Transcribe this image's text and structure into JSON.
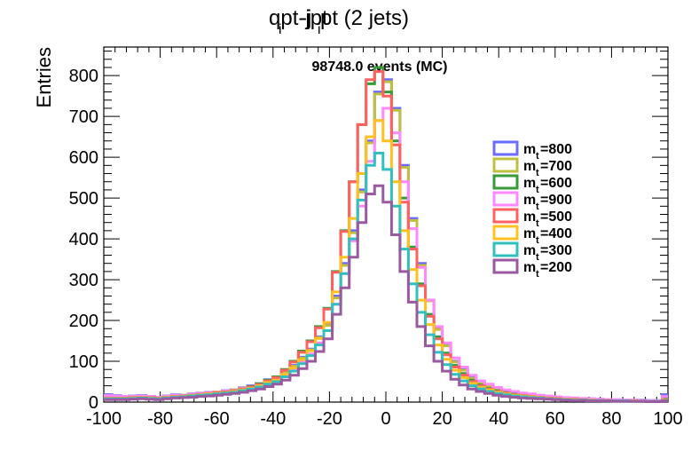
{
  "chart_data": {
    "type": "line",
    "title_main": "qpt-jpt",
    "title_sub": "i",
    "title_main_2": "pt (2 jets)",
    "title_prefix_j": "-j",
    "annotation": "98748.0 events (MC)",
    "ylabel": "Entries",
    "xlabel": "",
    "xlim": [
      -100,
      100
    ],
    "ylim": [
      0,
      870
    ],
    "x_ticks": [
      -100,
      -80,
      -60,
      -40,
      -20,
      0,
      20,
      40,
      60,
      80,
      100
    ],
    "x_tick_labels": [
      "-100",
      "-80",
      "-60",
      "-40",
      "-20",
      "0",
      "20",
      "40",
      "60",
      "80",
      "100"
    ],
    "y_ticks": [
      0,
      100,
      200,
      300,
      400,
      500,
      600,
      700,
      800
    ],
    "y_tick_labels": [
      "0",
      "100",
      "200",
      "300",
      "400",
      "500",
      "600",
      "700",
      "800"
    ],
    "grid": false,
    "legend_position": "right",
    "x": [
      -98.5,
      -95.5,
      -92.5,
      -89.5,
      -86.5,
      -83.5,
      -80.5,
      -77.5,
      -74.5,
      -71.5,
      -68.5,
      -65.5,
      -62.5,
      -59.5,
      -56.5,
      -53.5,
      -50.5,
      -47.5,
      -44.5,
      -41.5,
      -38.5,
      -35.5,
      -32.5,
      -29.5,
      -26.5,
      -23.5,
      -20.5,
      -17.5,
      -14.5,
      -11.5,
      -8.5,
      -5.5,
      -2.5,
      0.5,
      3.5,
      6.5,
      9.5,
      12.5,
      15.5,
      18.5,
      21.5,
      24.5,
      27.5,
      30.5,
      33.5,
      36.5,
      39.5,
      42.5,
      45.5,
      48.5,
      51.5,
      54.5,
      57.5,
      60.5,
      63.5,
      66.5,
      69.5,
      72.5,
      75.5,
      78.5,
      81.5,
      84.5,
      87.5,
      90.5,
      93.5,
      96.5,
      99.5
    ],
    "series": [
      {
        "name": "m_t=800",
        "label_main": "m",
        "label_sub": "t",
        "label_value": "=800",
        "color": "#6b6bff",
        "values": [
          18,
          16,
          14,
          15,
          16,
          14,
          12,
          15,
          18,
          17,
          20,
          22,
          24,
          25,
          28,
          30,
          35,
          40,
          45,
          55,
          60,
          75,
          90,
          110,
          130,
          160,
          190,
          260,
          340,
          420,
          520,
          640,
          760,
          790,
          720,
          580,
          450,
          340,
          250,
          180,
          140,
          100,
          80,
          60,
          48,
          40,
          32,
          28,
          24,
          20,
          18,
          16,
          14,
          12,
          10,
          10,
          8,
          8,
          7,
          6,
          6,
          5,
          5,
          5,
          4,
          4,
          18
        ]
      },
      {
        "name": "m_t=700",
        "label_main": "m",
        "label_sub": "t",
        "label_value": "=700",
        "color": "#c0c040",
        "values": [
          15,
          14,
          13,
          14,
          14,
          13,
          12,
          14,
          16,
          17,
          19,
          21,
          23,
          25,
          27,
          30,
          34,
          38,
          44,
          52,
          58,
          72,
          88,
          108,
          128,
          158,
          188,
          255,
          335,
          415,
          515,
          635,
          755,
          785,
          715,
          575,
          445,
          335,
          248,
          178,
          138,
          98,
          78,
          58,
          46,
          38,
          30,
          26,
          22,
          19,
          17,
          15,
          13,
          11,
          9,
          9,
          7,
          7,
          6,
          5,
          5,
          4,
          4,
          4,
          3,
          3,
          10
        ]
      },
      {
        "name": "m_t=600",
        "label_main": "m",
        "label_sub": "t",
        "label_value": "=600",
        "color": "#3a9a3a",
        "values": [
          12,
          12,
          11,
          12,
          13,
          12,
          11,
          13,
          15,
          16,
          18,
          20,
          22,
          24,
          26,
          29,
          33,
          38,
          45,
          54,
          62,
          80,
          100,
          125,
          150,
          185,
          230,
          320,
          420,
          540,
          680,
          780,
          820,
          760,
          640,
          500,
          380,
          290,
          215,
          160,
          120,
          90,
          70,
          54,
          42,
          34,
          28,
          24,
          20,
          17,
          15,
          13,
          11,
          10,
          8,
          8,
          6,
          6,
          5,
          4,
          4,
          4,
          3,
          3,
          3,
          2,
          8
        ]
      },
      {
        "name": "m_t=900",
        "label_main": "m",
        "label_sub": "t",
        "label_value": "=900",
        "color": "#ff88ff",
        "values": [
          16,
          15,
          14,
          14,
          15,
          14,
          12,
          14,
          17,
          16,
          19,
          21,
          23,
          24,
          27,
          29,
          33,
          37,
          42,
          50,
          56,
          68,
          82,
          100,
          118,
          145,
          175,
          240,
          315,
          395,
          480,
          590,
          690,
          720,
          660,
          540,
          425,
          330,
          250,
          185,
          145,
          108,
          86,
          66,
          52,
          44,
          36,
          30,
          26,
          22,
          20,
          17,
          15,
          13,
          11,
          10,
          9,
          8,
          7,
          6,
          6,
          5,
          5,
          4,
          4,
          4,
          14
        ]
      },
      {
        "name": "m_t=500",
        "label_main": "m",
        "label_sub": "t",
        "label_value": "=500",
        "color": "#ff6060",
        "values": [
          10,
          10,
          10,
          11,
          12,
          11,
          10,
          12,
          14,
          15,
          17,
          19,
          21,
          23,
          25,
          28,
          32,
          37,
          43,
          52,
          60,
          78,
          98,
          122,
          148,
          182,
          228,
          318,
          418,
          540,
          680,
          790,
          810,
          750,
          630,
          490,
          375,
          285,
          210,
          155,
          116,
          86,
          66,
          50,
          40,
          32,
          26,
          22,
          18,
          16,
          14,
          12,
          10,
          9,
          7,
          7,
          6,
          5,
          4,
          4,
          3,
          3,
          3,
          2,
          2,
          2,
          6
        ]
      },
      {
        "name": "m_t=400",
        "label_main": "m",
        "label_sub": "t",
        "label_value": "=400",
        "color": "#ffc020",
        "values": [
          9,
          9,
          9,
          10,
          11,
          10,
          9,
          11,
          13,
          14,
          16,
          18,
          20,
          21,
          23,
          26,
          30,
          34,
          40,
          48,
          54,
          68,
          84,
          104,
          126,
          156,
          195,
          270,
          355,
          450,
          560,
          650,
          690,
          640,
          540,
          420,
          325,
          250,
          190,
          140,
          105,
          78,
          60,
          46,
          36,
          30,
          24,
          20,
          17,
          15,
          13,
          11,
          9,
          8,
          7,
          6,
          5,
          5,
          4,
          4,
          3,
          3,
          3,
          2,
          2,
          2,
          5
        ]
      },
      {
        "name": "m_t=300",
        "label_main": "m",
        "label_sub": "t",
        "label_value": "=300",
        "color": "#30c0c0",
        "values": [
          8,
          8,
          8,
          9,
          10,
          9,
          8,
          10,
          12,
          13,
          15,
          17,
          18,
          20,
          22,
          24,
          28,
          32,
          37,
          44,
          50,
          62,
          76,
          94,
          114,
          140,
          175,
          240,
          315,
          400,
          495,
          580,
          610,
          570,
          480,
          375,
          290,
          220,
          165,
          122,
          92,
          68,
          52,
          40,
          32,
          26,
          21,
          18,
          15,
          13,
          11,
          10,
          8,
          7,
          6,
          5,
          5,
          4,
          4,
          3,
          3,
          3,
          2,
          2,
          2,
          2,
          4
        ]
      },
      {
        "name": "m_t=200",
        "label_main": "m",
        "label_sub": "t",
        "label_value": "=200",
        "color": "#9a5aa0",
        "values": [
          6,
          6,
          6,
          7,
          8,
          7,
          6,
          8,
          10,
          11,
          12,
          14,
          15,
          17,
          19,
          21,
          24,
          28,
          32,
          38,
          44,
          54,
          66,
          82,
          100,
          124,
          155,
          215,
          280,
          355,
          440,
          510,
          530,
          490,
          410,
          320,
          245,
          185,
          138,
          100,
          76,
          56,
          42,
          32,
          26,
          21,
          17,
          14,
          12,
          10,
          9,
          8,
          7,
          6,
          5,
          4,
          4,
          3,
          3,
          3,
          2,
          2,
          2,
          2,
          1,
          1,
          3
        ]
      }
    ]
  }
}
